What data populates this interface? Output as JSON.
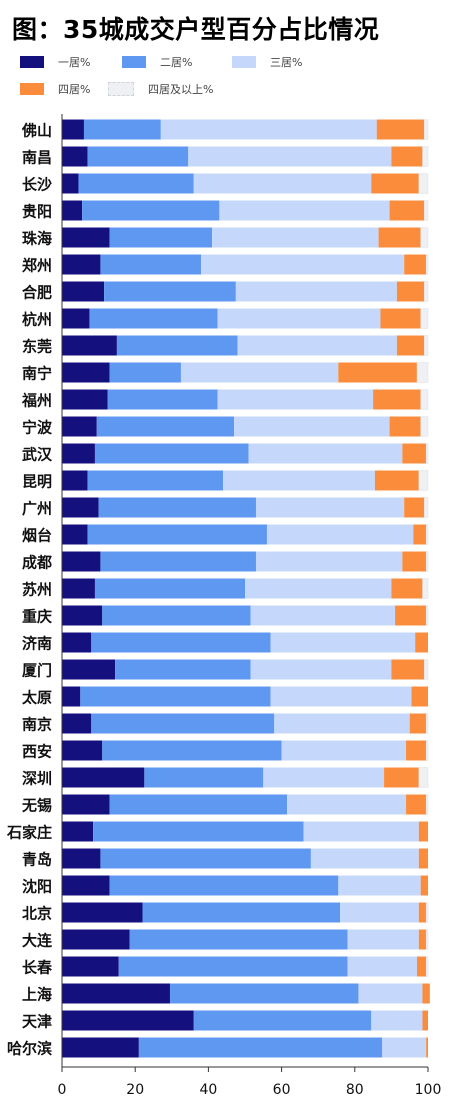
{
  "title": "图：35城成交户型百分占比情况",
  "colors": {
    "one": "#14117f",
    "two": "#5f98f0",
    "three": "#c5d8fb",
    "four": "#fa8c3c",
    "fivePlus": "#eef0f3"
  },
  "legend": [
    {
      "label": "一居%",
      "color_key": "one"
    },
    {
      "label": "二居%",
      "color_key": "two"
    },
    {
      "label": "三居%",
      "color_key": "three"
    },
    {
      "label": "四居%",
      "color_key": "four"
    },
    {
      "label": "四居及以上%",
      "color_key": "fivePlus"
    }
  ],
  "chart_data": {
    "type": "bar",
    "orientation": "horizontal",
    "stacked": true,
    "title": "图：35城成交户型百分占比情况",
    "xlim": [
      0,
      100
    ],
    "xticks": [
      0,
      20,
      40,
      60,
      80,
      100
    ],
    "legend_position": "top",
    "categories": [
      "佛山",
      "南昌",
      "长沙",
      "贵阳",
      "珠海",
      "郑州",
      "合肥",
      "杭州",
      "东莞",
      "南宁",
      "福州",
      "宁波",
      "武汉",
      "昆明",
      "广州",
      "烟台",
      "成都",
      "苏州",
      "重庆",
      "济南",
      "厦门",
      "太原",
      "南京",
      "西安",
      "深圳",
      "无锡",
      "石家庄",
      "青岛",
      "沈阳",
      "北京",
      "大连",
      "长春",
      "上海",
      "天津",
      "哈尔滨"
    ],
    "series": [
      {
        "name": "一居%",
        "values": [
          6,
          7,
          4.5,
          5.5,
          13,
          10.5,
          11.5,
          7.5,
          15,
          13,
          12.5,
          9.5,
          9,
          7,
          10,
          7,
          10.5,
          9,
          11,
          8,
          14.5,
          5,
          8,
          11,
          22.5,
          13,
          8.5,
          10.5,
          13,
          22,
          18.5,
          15.5,
          29.5,
          36,
          21
        ]
      },
      {
        "name": "二居%",
        "values": [
          21,
          27.5,
          31.5,
          37.5,
          28,
          27.5,
          36,
          35,
          33,
          19.5,
          30,
          37.5,
          42,
          37,
          43,
          49,
          42.5,
          41,
          40.5,
          49,
          37,
          52,
          50,
          49,
          32.5,
          48.5,
          57.5,
          57.5,
          62.5,
          54,
          59.5,
          62.5,
          51.5,
          48.5,
          66.5
        ]
      },
      {
        "name": "三居%",
        "values": [
          59,
          55.5,
          48.5,
          46.5,
          45.5,
          55.5,
          44,
          44.5,
          43.5,
          43,
          42.5,
          42.5,
          42,
          41.5,
          40.5,
          40,
          40,
          40,
          39.5,
          39.5,
          38.5,
          38.5,
          37,
          34,
          33,
          32.5,
          31.5,
          29.5,
          22.5,
          21.5,
          19.5,
          19,
          17.5,
          14,
          12
        ]
      },
      {
        "name": "四居%",
        "values": [
          13,
          8.5,
          13,
          9.5,
          11.5,
          6,
          7.5,
          11,
          7.5,
          21.5,
          13,
          8.5,
          6.5,
          12,
          5.5,
          3.5,
          6.5,
          8.5,
          8.5,
          3.5,
          9,
          4.5,
          4.5,
          5.5,
          9.5,
          5.5,
          2.5,
          2.5,
          2,
          2,
          2,
          2.5,
          2,
          1.5,
          0.5
        ]
      },
      {
        "name": "四居及以上%",
        "values": [
          1,
          1.5,
          2.5,
          1,
          2,
          0.5,
          1,
          2,
          1,
          3,
          2,
          2,
          0.5,
          2.5,
          1,
          0.5,
          0.5,
          1.5,
          0.5,
          0,
          1,
          0,
          0.5,
          0.5,
          2.5,
          0.5,
          0,
          0,
          0,
          0.5,
          0.5,
          0.5,
          0,
          0,
          0
        ]
      }
    ]
  }
}
